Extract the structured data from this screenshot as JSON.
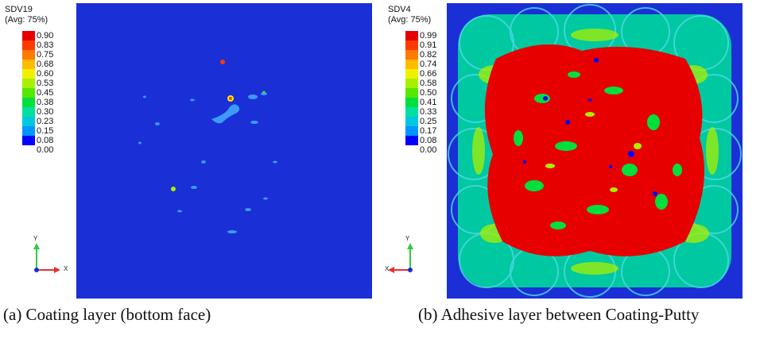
{
  "panel_a": {
    "variable": "SDV19",
    "averaging": "(Avg: 75%)",
    "legend_values": [
      "0.90",
      "0.83",
      "0.75",
      "0.68",
      "0.60",
      "0.53",
      "0.45",
      "0.38",
      "0.30",
      "0.23",
      "0.15",
      "0.08",
      "0.00"
    ],
    "axis_y": "Y",
    "axis_x": "X",
    "caption": "(a) Coating layer (bottom face)"
  },
  "panel_b": {
    "variable": "SDV4",
    "averaging": "(Avg: 75%)",
    "legend_values": [
      "0.99",
      "0.91",
      "0.82",
      "0.74",
      "0.66",
      "0.58",
      "0.50",
      "0.41",
      "0.33",
      "0.25",
      "0.17",
      "0.08",
      "0.00"
    ],
    "axis_y": "Y",
    "axis_x": "X",
    "caption": "(b) Adhesive layer between Coating-Putty"
  },
  "colors": {
    "contour_scale": [
      "#e60000",
      "#ff3a00",
      "#ff7a00",
      "#ffbb00",
      "#f0f000",
      "#a8f000",
      "#55e800",
      "#00e03c",
      "#00e0a0",
      "#00c8e0",
      "#0096ff",
      "#0050ff",
      "#0000ff"
    ],
    "field_background": "#1a2fd6"
  }
}
